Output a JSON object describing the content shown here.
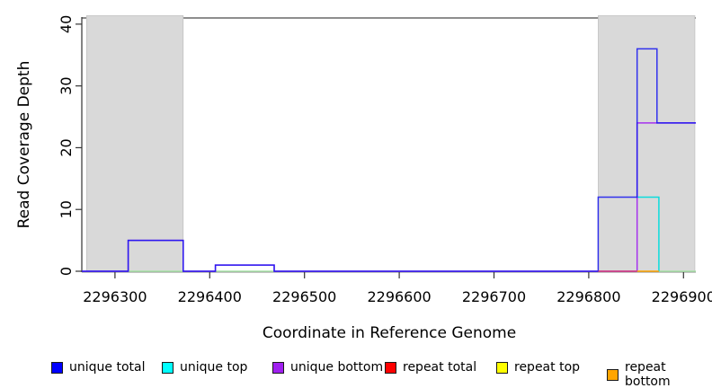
{
  "chart_data": {
    "type": "line",
    "title": "",
    "xlabel": "Coordinate in Reference Genome",
    "ylabel": "Read Coverage Depth",
    "xlim": [
      2296265,
      2296913
    ],
    "ylim": [
      0,
      41
    ],
    "grid": false,
    "legend_position": "bottom",
    "x_ticks": [
      {
        "value": 2296300,
        "label": "2296300"
      },
      {
        "value": 2296400,
        "label": "2296400"
      },
      {
        "value": 2296500,
        "label": "2296500"
      },
      {
        "value": 2296600,
        "label": "2296600"
      },
      {
        "value": 2296700,
        "label": "2296700"
      },
      {
        "value": 2296800,
        "label": "2296800"
      },
      {
        "value": 2296900,
        "label": "2296900"
      }
    ],
    "y_ticks": [
      {
        "value": 0,
        "label": "0"
      },
      {
        "value": 10,
        "label": "10"
      },
      {
        "value": 20,
        "label": "20"
      },
      {
        "value": 30,
        "label": "30"
      },
      {
        "value": 40,
        "label": "40"
      }
    ],
    "top_line_depth": 41,
    "gray_regions": [
      {
        "from": 2296270,
        "to": 2296372
      },
      {
        "from": 2296810,
        "to": 2296912
      }
    ],
    "legend": [
      {
        "label": "unique total",
        "color": "#0000FF"
      },
      {
        "label": "unique top",
        "color": "#00FFFF"
      },
      {
        "label": "unique bottom",
        "color": "#A020F0"
      },
      {
        "label": "repeat total",
        "color": "#FF0000"
      },
      {
        "label": "repeat top",
        "color": "#FFFF00"
      },
      {
        "label": "repeat bottom",
        "color": "#FFA500"
      }
    ],
    "series_draw": [
      {
        "name": "baseline-blend-1",
        "color": "#A8E2A8",
        "width": 1.4,
        "opacity": 1,
        "points": [
          [
            2296314,
            0
          ],
          [
            2296372,
            0
          ]
        ]
      },
      {
        "name": "baseline-blend-2",
        "color": "#A8E2A8",
        "width": 1.4,
        "opacity": 1,
        "points": [
          [
            2296406,
            0
          ],
          [
            2296468,
            0
          ]
        ]
      },
      {
        "name": "baseline-blend-3",
        "color": "#A8E2A8",
        "width": 1.4,
        "opacity": 1,
        "points": [
          [
            2296874,
            0
          ],
          [
            2296913,
            0
          ]
        ]
      },
      {
        "name": "unique-top",
        "color": "#00DCDC",
        "width": 1.5,
        "opacity": 0.95,
        "points": [
          [
            2296851,
            12
          ],
          [
            2296874,
            12
          ],
          [
            2296874,
            0
          ]
        ]
      },
      {
        "name": "unique-bottom",
        "color": "#A020F0",
        "width": 1.5,
        "opacity": 0.9,
        "points": [
          [
            2296265,
            0
          ],
          [
            2296314,
            0
          ],
          [
            2296314,
            5
          ],
          [
            2296372,
            5
          ],
          [
            2296372,
            0
          ],
          [
            2296406,
            0
          ],
          [
            2296406,
            1
          ],
          [
            2296468,
            1
          ],
          [
            2296468,
            0
          ],
          [
            2296851,
            0
          ],
          [
            2296851,
            24
          ],
          [
            2296913,
            24
          ]
        ]
      },
      {
        "name": "unique-total",
        "color": "#1414F0",
        "width": 1.5,
        "opacity": 0.85,
        "points": [
          [
            2296265,
            0
          ],
          [
            2296314,
            0
          ],
          [
            2296314,
            5
          ],
          [
            2296372,
            5
          ],
          [
            2296372,
            0
          ],
          [
            2296406,
            0
          ],
          [
            2296406,
            1
          ],
          [
            2296468,
            1
          ],
          [
            2296468,
            0
          ],
          [
            2296810,
            0
          ],
          [
            2296810,
            12
          ],
          [
            2296851,
            12
          ],
          [
            2296851,
            36
          ],
          [
            2296872,
            36
          ],
          [
            2296872,
            24
          ],
          [
            2296913,
            24
          ]
        ]
      },
      {
        "name": "repeat-total",
        "color": "#E04060",
        "width": 1.4,
        "opacity": 0.8,
        "points": [
          [
            2296810,
            0
          ],
          [
            2296851,
            0
          ]
        ]
      },
      {
        "name": "repeat-bottom",
        "color": "#FFA500",
        "width": 1.5,
        "opacity": 1,
        "points": [
          [
            2296851,
            0
          ],
          [
            2296874,
            0
          ]
        ]
      }
    ]
  }
}
